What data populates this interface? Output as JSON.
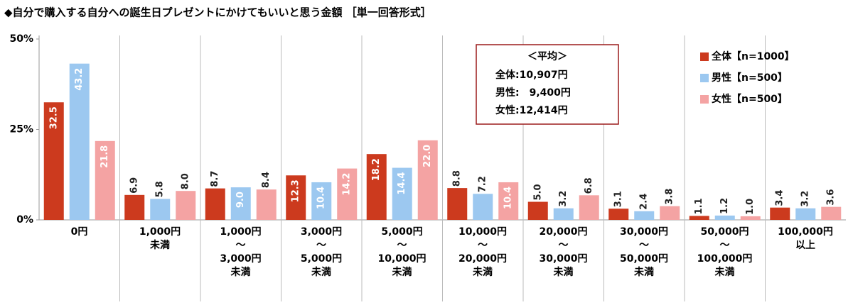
{
  "chart_data": {
    "type": "bar",
    "title": "◆自分で購入する自分への誕生日プレゼントにかけてもいいと思う金額 ［単一回答形式］",
    "categories": [
      "0円",
      "1,000円\n未満",
      "1,000円\n～\n3,000円\n未満",
      "3,000円\n～\n5,000円\n未満",
      "5,000円\n～\n10,000円\n未満",
      "10,000円\n～\n20,000円\n未満",
      "20,000円\n～\n30,000円\n未満",
      "30,000円\n～\n50,000円\n未満",
      "50,000円\n～\n100,000円\n未満",
      "100,000円\n以上"
    ],
    "series": [
      {
        "name": "全体【n=1000】",
        "color": "#cc3a1e",
        "values": [
          32.5,
          6.9,
          8.7,
          12.3,
          18.2,
          8.8,
          5.0,
          3.1,
          1.1,
          3.4
        ],
        "value_labels": [
          "32.5",
          "6.9",
          "8.7",
          "12.3",
          "18.2",
          "8.8",
          "5.0",
          "3.1",
          "1.1",
          "3.4"
        ]
      },
      {
        "name": "男性【n=500】",
        "color": "#9cc8f0",
        "values": [
          43.2,
          5.8,
          9.0,
          10.4,
          14.4,
          7.2,
          3.2,
          2.4,
          1.2,
          3.2
        ],
        "value_labels": [
          "43.2",
          "5.8",
          "9.0",
          "10.4",
          "14.4",
          "7.2",
          "3.2",
          "2.4",
          "1.2",
          "3.2"
        ]
      },
      {
        "name": "女性【n=500】",
        "color": "#f4a3a3",
        "values": [
          21.8,
          8.0,
          8.4,
          14.2,
          22.0,
          10.4,
          6.8,
          3.8,
          1.0,
          3.6
        ],
        "value_labels": [
          "21.8",
          "8.0",
          "8.4",
          "14.2",
          "22.0",
          "10.4",
          "6.8",
          "3.8",
          "1.0",
          "3.6"
        ]
      }
    ],
    "ylim": [
      0,
      50
    ],
    "yticks": [
      {
        "value": 0,
        "label": "0%"
      },
      {
        "value": 25,
        "label": "25%"
      },
      {
        "value": 50,
        "label": "50%"
      }
    ],
    "grid": false,
    "legend": "top-right",
    "annotation": {
      "title": "＜平均＞",
      "lines": [
        "全体:10,907円",
        "男性:　9,400円",
        "女性:12,414円"
      ]
    }
  }
}
